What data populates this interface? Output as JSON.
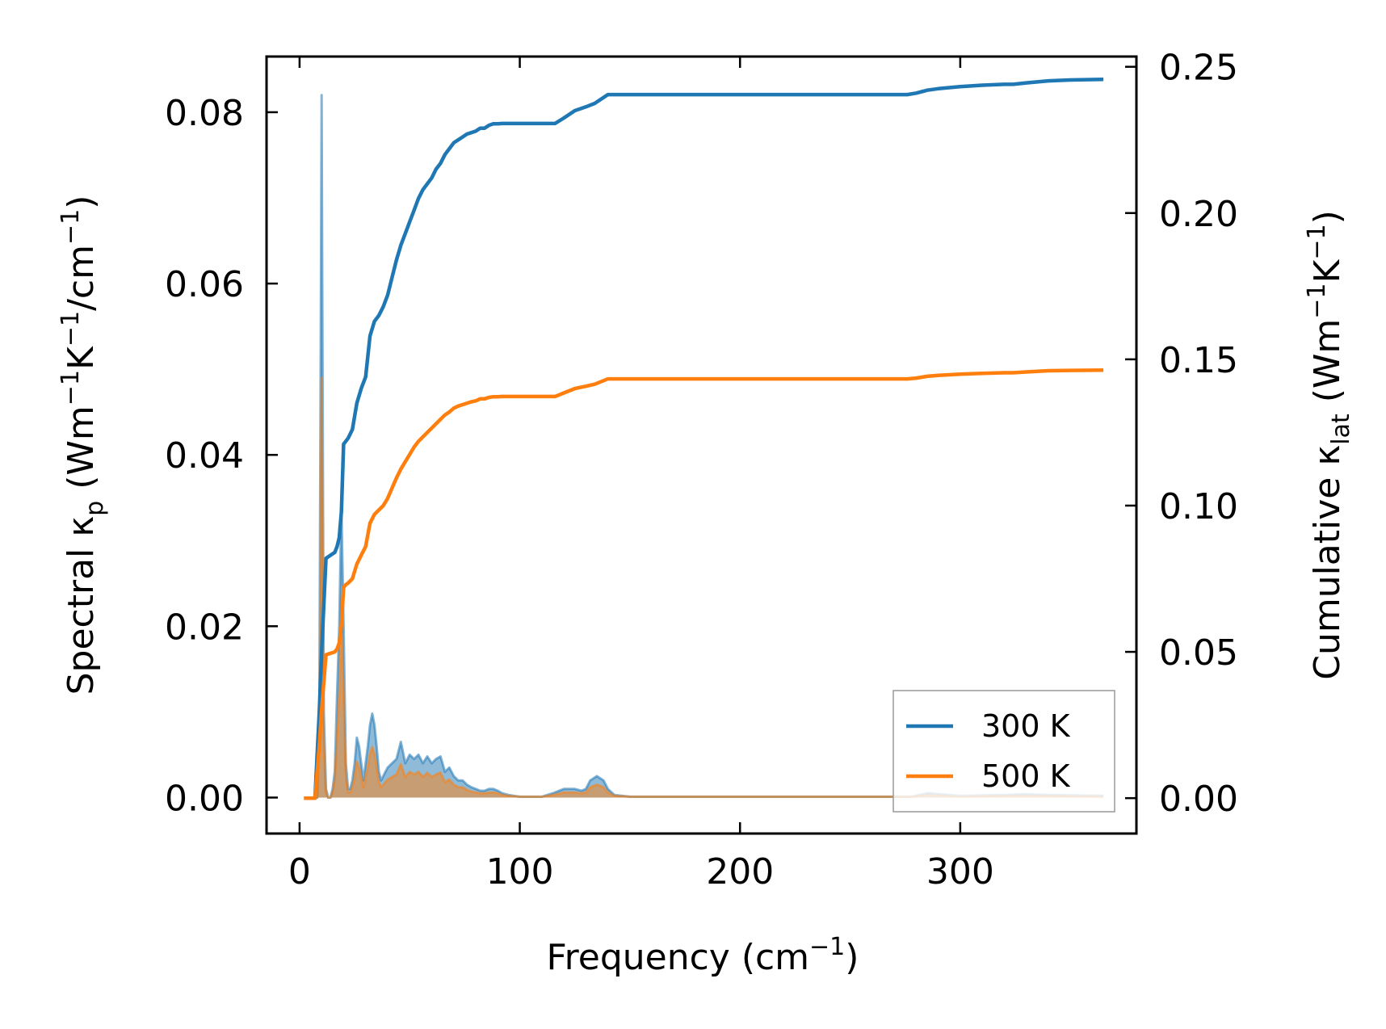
{
  "chart_data": {
    "type": "line",
    "xlabel": {
      "main": "Frequency (cm",
      "sup": "−1",
      "end": ")"
    },
    "ylabel_left": {
      "pre": "Spectral κ",
      "sub": "p",
      "post": " (Wm",
      "sup1": "−1",
      "mid": "K",
      "sup2": "−1",
      "tail": "/cm",
      "sup3": "−1",
      "end": ")"
    },
    "ylabel_right": {
      "pre": "Cumulative κ",
      "sub": "lat",
      "post": " (Wm",
      "sup1": "−1",
      "mid": "K",
      "sup2": "−1",
      "end": ")"
    },
    "xlim": [
      -15,
      380
    ],
    "ylim_left": [
      -0.0042,
      0.0865
    ],
    "ylim_right": [
      -0.0121,
      0.2535
    ],
    "xticks": [
      0,
      100,
      200,
      300
    ],
    "xtick_labels": [
      "0",
      "100",
      "200",
      "300"
    ],
    "yticks_left": [
      0,
      0.02,
      0.04,
      0.06,
      0.08
    ],
    "ytick_labels_left": [
      "0.00",
      "0.02",
      "0.04",
      "0.06",
      "0.08"
    ],
    "yticks_right": [
      0,
      0.05,
      0.1,
      0.15,
      0.2,
      0.25
    ],
    "ytick_labels_right": [
      "0.00",
      "0.05",
      "0.10",
      "0.15",
      "0.20",
      "0.25"
    ],
    "legend_position": "lower-right",
    "colors": {
      "300 K": "#1f77b4",
      "500 K": "#ff7f0e"
    },
    "spectral_series": [
      {
        "name": "300 K",
        "axis": "left",
        "x": [
          2,
          8,
          9,
          10,
          11,
          12,
          13,
          14,
          15,
          16,
          17,
          18,
          19,
          20,
          21,
          22,
          23,
          24,
          25,
          26,
          27,
          28,
          29,
          30,
          31,
          32,
          33,
          34,
          35,
          36,
          37,
          38,
          39,
          40,
          42,
          44,
          46,
          48,
          50,
          52,
          54,
          56,
          58,
          60,
          62,
          64,
          66,
          68,
          70,
          72,
          74,
          76,
          78,
          80,
          82,
          84,
          86,
          88,
          90,
          92,
          95,
          100,
          110,
          115,
          120,
          125,
          128,
          130,
          132,
          135,
          138,
          140,
          143,
          150,
          200,
          260,
          278,
          285,
          300,
          320,
          330,
          340,
          365
        ],
        "y": [
          0,
          0,
          0.01,
          0.082,
          0.01,
          0.001,
          0,
          0,
          0.001,
          0.003,
          0.012,
          0.02,
          0.034,
          0.02,
          0.004,
          0.001,
          0.001,
          0.002,
          0.004,
          0.007,
          0.006,
          0.004,
          0.002,
          0.004,
          0.006,
          0.0085,
          0.0098,
          0.0085,
          0.006,
          0.003,
          0.002,
          0.0025,
          0.003,
          0.0035,
          0.004,
          0.0045,
          0.0065,
          0.004,
          0.005,
          0.0045,
          0.005,
          0.004,
          0.0048,
          0.004,
          0.0045,
          0.0048,
          0.003,
          0.0035,
          0.0025,
          0.002,
          0.002,
          0.0015,
          0.0012,
          0.001,
          0.0008,
          0.0008,
          0.001,
          0.001,
          0.0008,
          0.0005,
          0.0003,
          0.0001,
          0.0001,
          0.0005,
          0.001,
          0.001,
          0.0008,
          0.001,
          0.002,
          0.0025,
          0.002,
          0.001,
          0.0003,
          0.0001,
          0.0001,
          0.0001,
          0.0001,
          0.0005,
          0.0002,
          0.0003,
          0.0004,
          0.0003,
          0.0002
        ]
      },
      {
        "name": "500 K",
        "axis": "left",
        "x": [
          2,
          8,
          9,
          10,
          11,
          12,
          13,
          14,
          15,
          16,
          17,
          18,
          19,
          20,
          21,
          22,
          23,
          24,
          25,
          26,
          27,
          28,
          29,
          30,
          31,
          32,
          33,
          34,
          35,
          36,
          37,
          38,
          39,
          40,
          42,
          44,
          46,
          48,
          50,
          52,
          54,
          56,
          58,
          60,
          62,
          64,
          66,
          68,
          70,
          72,
          74,
          76,
          78,
          80,
          82,
          84,
          86,
          88,
          90,
          92,
          95,
          100,
          110,
          115,
          120,
          125,
          128,
          130,
          132,
          135,
          138,
          140,
          143,
          150,
          200,
          260,
          278,
          285,
          300,
          320,
          330,
          340,
          365
        ],
        "y": [
          0,
          0,
          0.006,
          0.049,
          0.006,
          0.0006,
          0,
          0,
          0.0006,
          0.002,
          0.007,
          0.012,
          0.02,
          0.012,
          0.0024,
          0.0006,
          0.0006,
          0.0012,
          0.0024,
          0.0042,
          0.0036,
          0.0024,
          0.0012,
          0.0024,
          0.0036,
          0.0051,
          0.0059,
          0.0051,
          0.0036,
          0.0018,
          0.0012,
          0.0015,
          0.0018,
          0.0021,
          0.0024,
          0.0027,
          0.0039,
          0.0024,
          0.003,
          0.0027,
          0.003,
          0.0024,
          0.0029,
          0.0024,
          0.0027,
          0.0029,
          0.0018,
          0.0021,
          0.0015,
          0.0012,
          0.0012,
          0.0009,
          0.0007,
          0.0006,
          0.0005,
          0.0005,
          0.0006,
          0.0006,
          0.0005,
          0.0003,
          0.0002,
          0.0001,
          0.0001,
          0.0003,
          0.0006,
          0.0006,
          0.0005,
          0.0006,
          0.0012,
          0.0015,
          0.0012,
          0.0006,
          0.0002,
          0.0001,
          0.0001,
          0.0001,
          0.0001,
          0.0003,
          0.0001,
          0.0002,
          0.0002,
          0.0002,
          0.0001
        ]
      }
    ],
    "cumulative_series": [
      {
        "name": "300 K",
        "axis": "right",
        "x": [
          2,
          7,
          9,
          10,
          12,
          14,
          16,
          17,
          18,
          19,
          20,
          21,
          22,
          24,
          26,
          28,
          30,
          32,
          34,
          36,
          38,
          40,
          42,
          44,
          46,
          48,
          50,
          52,
          54,
          56,
          58,
          60,
          62,
          64,
          66,
          68,
          70,
          72,
          74,
          76,
          78,
          80,
          82,
          84,
          86,
          88,
          90,
          92,
          94,
          96,
          98,
          100,
          110,
          116,
          120,
          125,
          130,
          134,
          138,
          140,
          143,
          150,
          200,
          260,
          276,
          280,
          285,
          290,
          300,
          310,
          320,
          324,
          330,
          340,
          350,
          365
        ],
        "y": [
          0,
          0,
          0.03,
          0.05,
          0.082,
          0.083,
          0.084,
          0.086,
          0.089,
          0.098,
          0.121,
          0.122,
          0.123,
          0.126,
          0.135,
          0.14,
          0.144,
          0.158,
          0.163,
          0.165,
          0.168,
          0.172,
          0.178,
          0.184,
          0.189,
          0.193,
          0.197,
          0.201,
          0.205,
          0.208,
          0.21,
          0.212,
          0.215,
          0.217,
          0.22,
          0.222,
          0.224,
          0.225,
          0.226,
          0.227,
          0.2275,
          0.228,
          0.229,
          0.229,
          0.23,
          0.2305,
          0.2305,
          0.2306,
          0.2306,
          0.2306,
          0.2306,
          0.2306,
          0.2306,
          0.2306,
          0.2325,
          0.235,
          0.2363,
          0.2375,
          0.2395,
          0.2405,
          0.2405,
          0.2405,
          0.2405,
          0.2405,
          0.2405,
          0.241,
          0.242,
          0.2425,
          0.2432,
          0.2437,
          0.244,
          0.244,
          0.2445,
          0.2452,
          0.2455,
          0.2457
        ]
      },
      {
        "name": "500 K",
        "axis": "right",
        "x": [
          2,
          7,
          9,
          10,
          12,
          14,
          16,
          17,
          18,
          19,
          20,
          21,
          22,
          24,
          26,
          28,
          30,
          32,
          34,
          36,
          38,
          40,
          42,
          44,
          46,
          48,
          50,
          52,
          54,
          56,
          58,
          60,
          62,
          64,
          66,
          68,
          70,
          72,
          74,
          76,
          78,
          80,
          82,
          84,
          86,
          88,
          90,
          92,
          94,
          96,
          98,
          100,
          110,
          116,
          120,
          125,
          130,
          134,
          138,
          140,
          143,
          150,
          200,
          260,
          276,
          280,
          285,
          290,
          300,
          310,
          320,
          324,
          330,
          340,
          350,
          365
        ],
        "y": [
          0,
          0,
          0.018,
          0.03,
          0.049,
          0.0495,
          0.05,
          0.051,
          0.053,
          0.059,
          0.072,
          0.073,
          0.0735,
          0.075,
          0.08,
          0.083,
          0.086,
          0.094,
          0.097,
          0.0985,
          0.1,
          0.1025,
          0.106,
          0.1095,
          0.1125,
          0.115,
          0.1175,
          0.12,
          0.122,
          0.1235,
          0.125,
          0.1265,
          0.128,
          0.1295,
          0.131,
          0.132,
          0.1333,
          0.134,
          0.1345,
          0.135,
          0.1355,
          0.1358,
          0.1365,
          0.1365,
          0.137,
          0.1372,
          0.1372,
          0.1373,
          0.1373,
          0.1373,
          0.1373,
          0.1373,
          0.1373,
          0.1373,
          0.1385,
          0.14,
          0.1408,
          0.1415,
          0.1427,
          0.1433,
          0.1433,
          0.1433,
          0.1433,
          0.1433,
          0.1433,
          0.1436,
          0.1442,
          0.1445,
          0.1449,
          0.1452,
          0.1454,
          0.1454,
          0.1457,
          0.1461,
          0.1462,
          0.1463
        ]
      }
    ],
    "legend": [
      "300 K",
      "500 K"
    ]
  }
}
